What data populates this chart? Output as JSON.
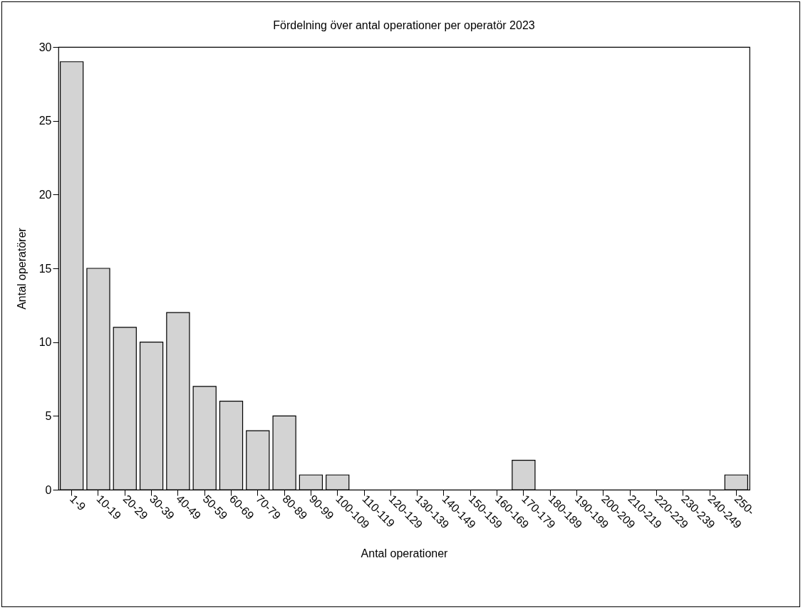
{
  "chart_data": {
    "type": "bar",
    "title": "Fördelning över antal operationer per operatör 2023",
    "xlabel": "Antal operationer",
    "ylabel": "Antal operatörer",
    "categories": [
      "1-9",
      "10-19",
      "20-29",
      "30-39",
      "40-49",
      "50-59",
      "60-69",
      "70-79",
      "80-89",
      "90-99",
      "100-109",
      "110-119",
      "120-129",
      "130-139",
      "140-149",
      "150-159",
      "160-169",
      "170-179",
      "180-189",
      "190-199",
      "200-209",
      "210-219",
      "220-229",
      "230-239",
      "240-249",
      "250-"
    ],
    "values": [
      29,
      15,
      11,
      10,
      12,
      7,
      6,
      4,
      5,
      1,
      1,
      0,
      0,
      0,
      0,
      0,
      0,
      2,
      0,
      0,
      0,
      0,
      0,
      0,
      0,
      1
    ],
    "color": "#d3d3d3",
    "ylim": [
      0,
      30
    ],
    "yticks": [
      0,
      5,
      10,
      15,
      20,
      25,
      30
    ],
    "grid": false
  }
}
